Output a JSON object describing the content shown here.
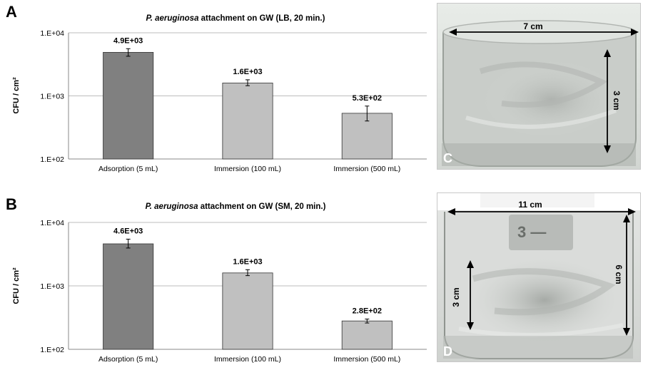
{
  "panels": {
    "a": "A",
    "b": "B",
    "c": "C",
    "d": "D"
  },
  "chart_data": [
    {
      "type": "bar",
      "title_organism": "P. aeruginosa",
      "title_rest": " attachment on GW (LB, 20 min.)",
      "ylabel": "CFU / cm²",
      "yscale": "log",
      "ylim": [
        100,
        10000
      ],
      "yticks": [
        "1.E+02",
        "1.E+03",
        "1.E+04"
      ],
      "grid": true,
      "categories": [
        "Adsorption (5 mL)",
        "Immersion (100 mL)",
        "Immersion (500 mL)"
      ],
      "values": [
        4900,
        1600,
        530
      ],
      "value_labels": [
        "4.9E+03",
        "1.6E+03",
        "5.3E+02"
      ],
      "errors": [
        [
          4250,
          5600
        ],
        [
          1450,
          1800
        ],
        [
          400,
          690
        ]
      ],
      "bar_colors": [
        "#808080",
        "#c0c0c0",
        "#c0c0c0"
      ]
    },
    {
      "type": "bar",
      "title_organism": "P. aeruginosa",
      "title_rest": " attachment on GW (SM, 20 min.)",
      "ylabel": "CFU / cm²",
      "yscale": "log",
      "ylim": [
        100,
        10000
      ],
      "yticks": [
        "1.E+02",
        "1.E+03",
        "1.E+04"
      ],
      "grid": true,
      "categories": [
        "Adsorption (5 mL)",
        "Immersion (100 mL)",
        "Immersion (500 mL)"
      ],
      "values": [
        4600,
        1600,
        280
      ],
      "value_labels": [
        "4.6E+03",
        "1.6E+03",
        "2.8E+02"
      ],
      "errors": [
        [
          3950,
          5450
        ],
        [
          1450,
          1800
        ],
        [
          260,
          300
        ]
      ],
      "bar_colors": [
        "#808080",
        "#c0c0c0",
        "#c0c0c0"
      ]
    }
  ],
  "photos": {
    "c": {
      "width_label": "7 cm",
      "height_label": "3 cm"
    },
    "d": {
      "width_label": "11 cm",
      "height_label_right": "6 cm",
      "height_label_left": "3 cm"
    }
  }
}
